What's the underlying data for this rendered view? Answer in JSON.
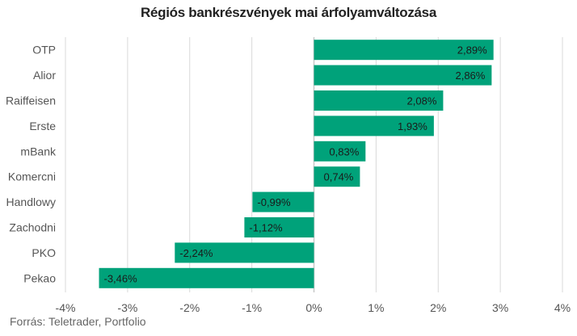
{
  "source": "Forrás: Teletrader, Portfolio",
  "chart_data": {
    "type": "bar",
    "orientation": "horizontal",
    "title": "Régiós bankrészvények mai árfolyamváltozása",
    "categories": [
      "OTP",
      "Alior",
      "Raiffeisen",
      "Erste",
      "mBank",
      "Komercni",
      "Handlowy",
      "Zachodni",
      "PKO",
      "Pekao"
    ],
    "values": [
      2.89,
      2.86,
      2.08,
      1.93,
      0.83,
      0.74,
      -0.99,
      -1.12,
      -2.24,
      -3.46
    ],
    "value_labels": [
      "2,89%",
      "2,86%",
      "2,08%",
      "1,93%",
      "0,83%",
      "0,74%",
      "-0,99%",
      "-1,12%",
      "-2,24%",
      "-3,46%"
    ],
    "xlim": [
      -4,
      4
    ],
    "x_ticks": [
      -4,
      -3,
      -2,
      -1,
      0,
      1,
      2,
      3,
      4
    ],
    "x_tick_labels": [
      "-4%",
      "-3%",
      "-2%",
      "-1%",
      "0%",
      "1%",
      "2%",
      "3%",
      "4%"
    ],
    "grid": "vertical",
    "bar_color": "#00a27a",
    "grid_color": "#d9d9d9",
    "axis_color": "#c8c8c8"
  }
}
